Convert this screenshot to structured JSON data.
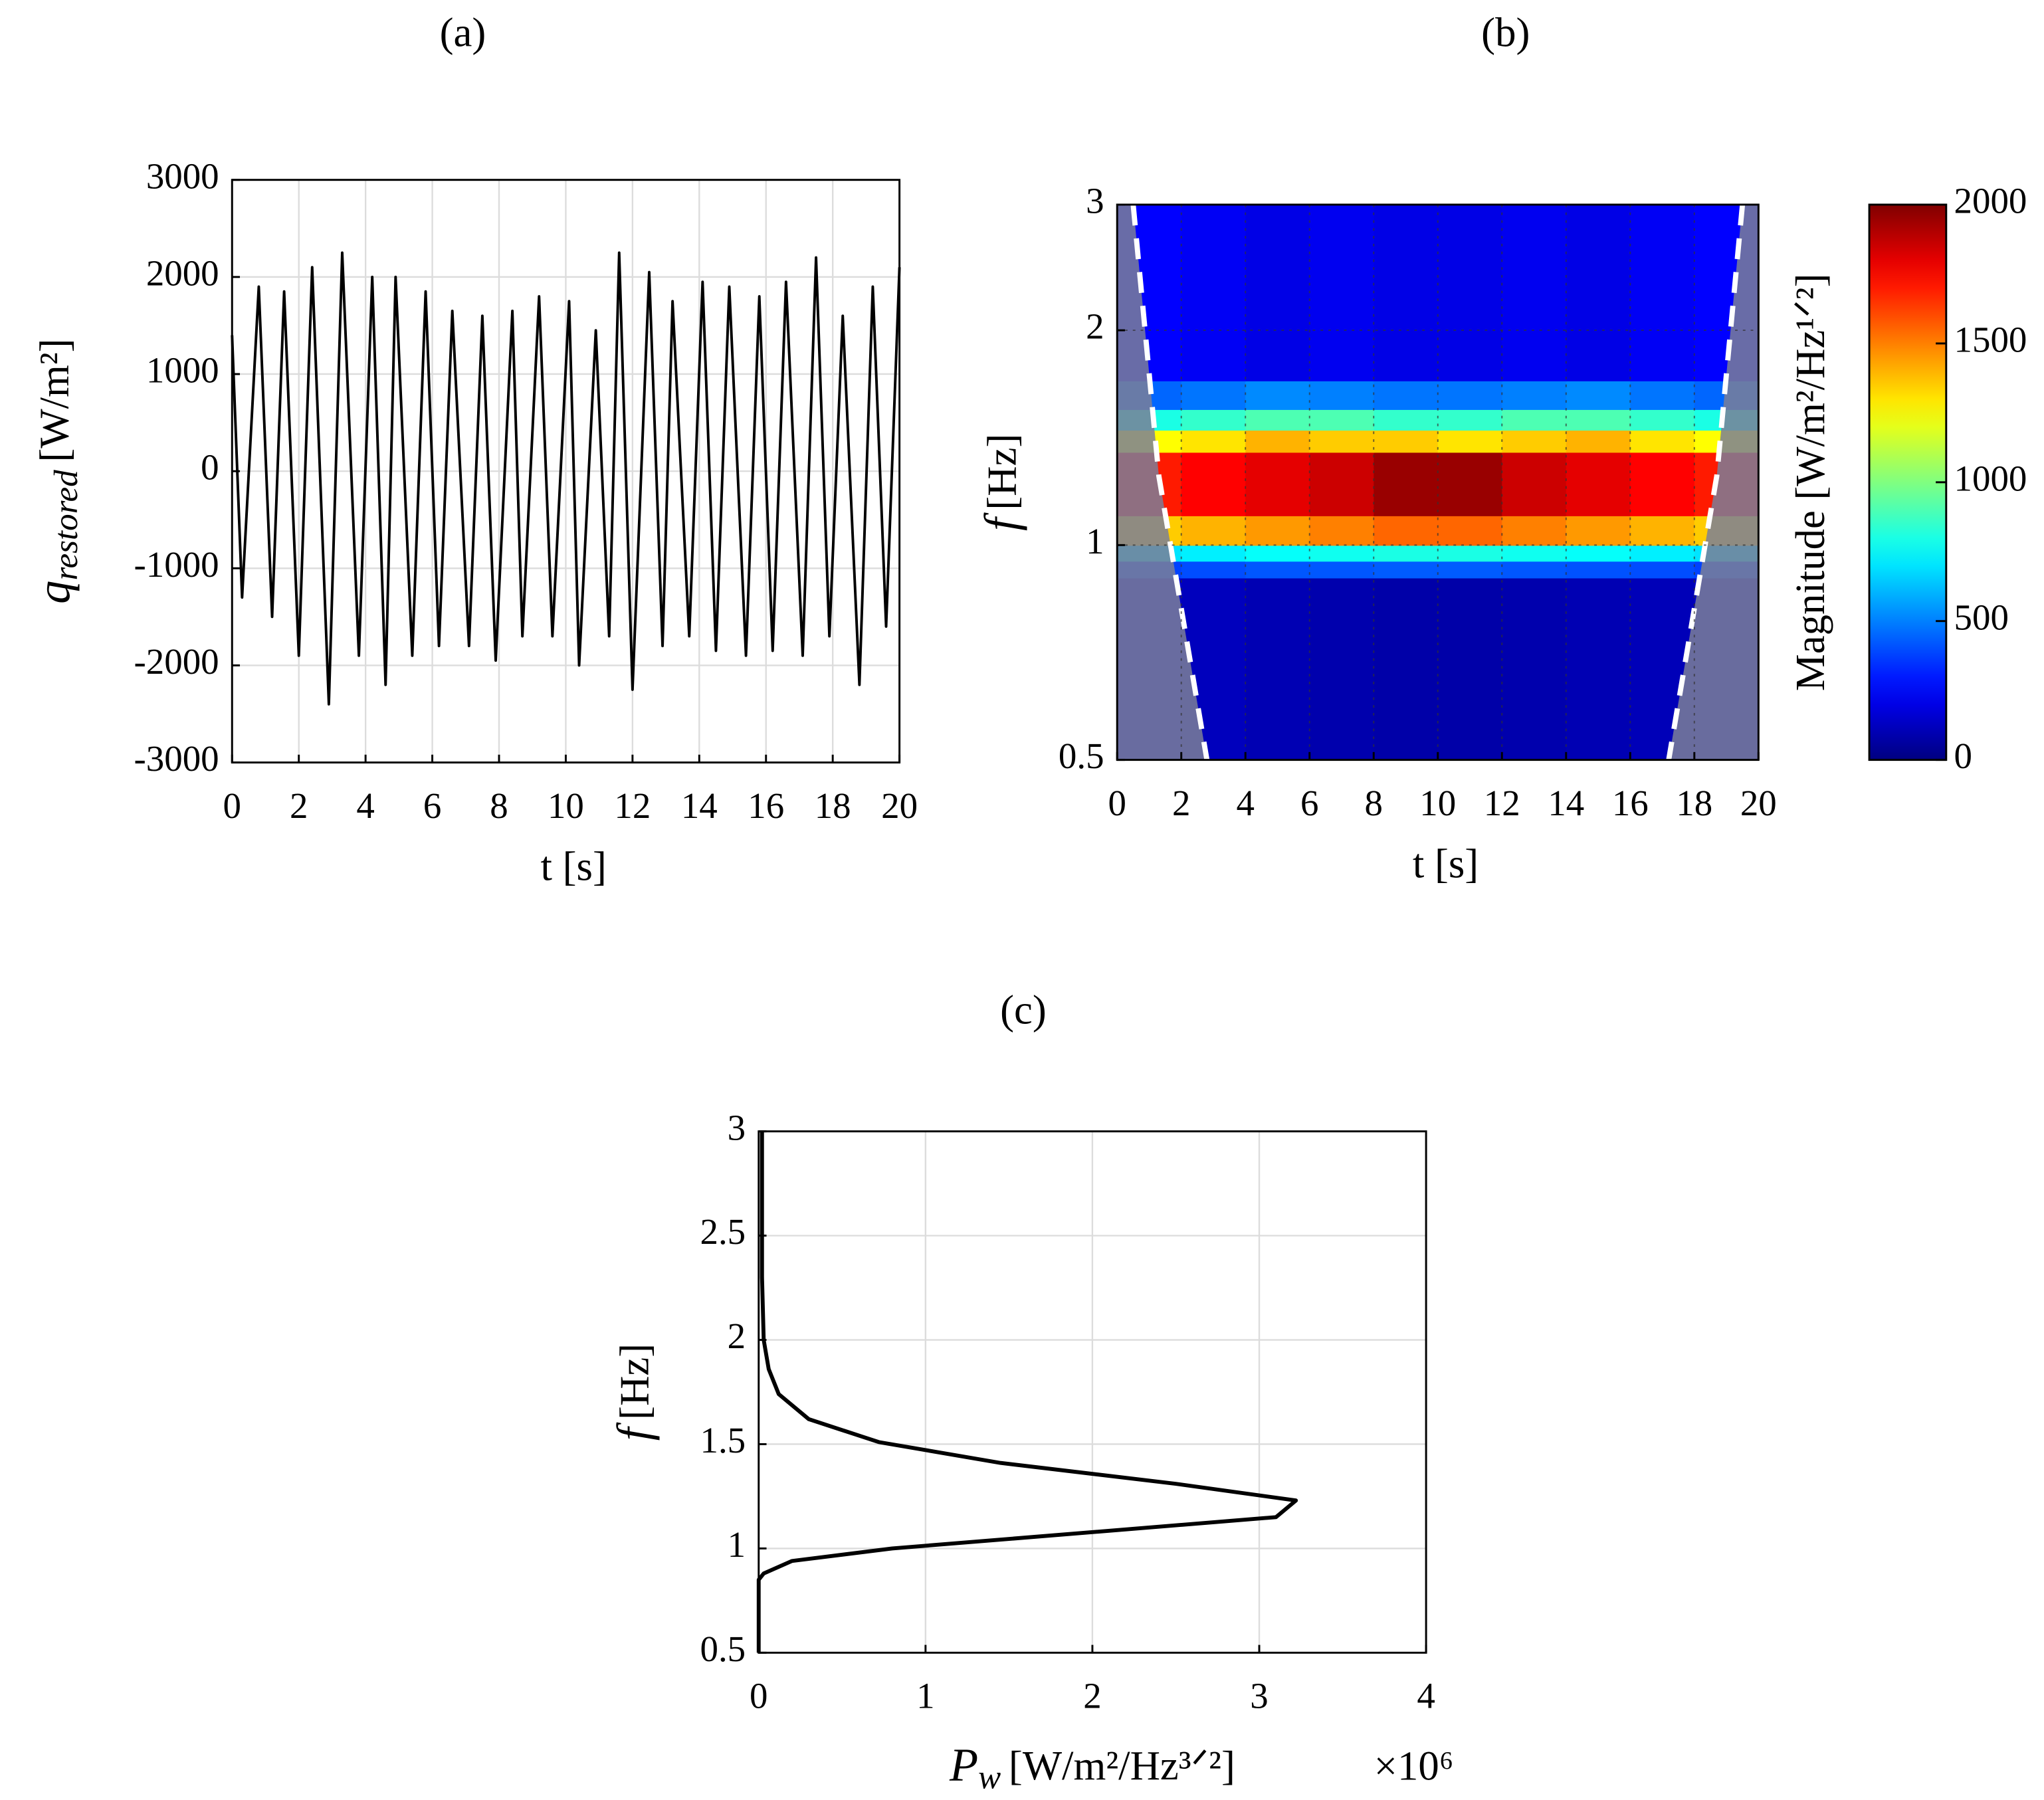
{
  "chart_data": [
    {
      "type": "line",
      "title": "(a)",
      "xlabel": {
        "unit": "t [s]"
      },
      "ylabel": {
        "symbol": "q",
        "subscript": "restored",
        "unit": "[W/m²]"
      },
      "xlim": [
        0,
        20
      ],
      "xticks": [
        0,
        2,
        4,
        6,
        8,
        10,
        12,
        14,
        16,
        18,
        20
      ],
      "ylim": [
        -3000,
        3000
      ],
      "yticks": [
        -3000,
        -2000,
        -1000,
        0,
        1000,
        2000,
        3000
      ],
      "grid": true,
      "series": [
        {
          "color": "#000000",
          "x": [
            0,
            0.3,
            0.8,
            1.2,
            1.56,
            2.0,
            2.4,
            2.9,
            3.3,
            3.8,
            4.2,
            4.6,
            4.9,
            5.4,
            5.8,
            6.2,
            6.6,
            7.1,
            7.5,
            7.9,
            8.4,
            8.7,
            9.2,
            9.6,
            10.1,
            10.4,
            10.9,
            11.3,
            11.6,
            12.0,
            12.5,
            12.9,
            13.2,
            13.7,
            14.1,
            14.5,
            14.9,
            15.4,
            15.8,
            16.2,
            16.6,
            17.1,
            17.5,
            17.9,
            18.3,
            18.8,
            19.2,
            19.6,
            20
          ],
          "values": [
            1400,
            -1300,
            1900,
            -1500,
            1850,
            -1900,
            2100,
            -2400,
            2250,
            -1900,
            2000,
            -2200,
            2000,
            -1900,
            1850,
            -1800,
            1650,
            -1800,
            1600,
            -1950,
            1650,
            -1700,
            1800,
            -1700,
            1750,
            -2000,
            1450,
            -1700,
            2250,
            -2250,
            2050,
            -1800,
            1750,
            -1700,
            1950,
            -1850,
            1900,
            -1900,
            1800,
            -1850,
            1950,
            -1900,
            2200,
            -1700,
            1600,
            -2200,
            1900,
            -1600,
            2100
          ]
        }
      ]
    },
    {
      "type": "heatmap",
      "title": "(b)",
      "xlabel": {
        "unit": "t [s]"
      },
      "ylabel": {
        "symbol": "f",
        "unit": "[Hz]"
      },
      "xlim": [
        0,
        20
      ],
      "xticks": [
        0,
        2,
        4,
        6,
        8,
        10,
        12,
        14,
        16,
        18,
        20
      ],
      "ylim": [
        0.5,
        3
      ],
      "yticks": [
        0.5,
        1,
        2,
        3
      ],
      "ylog": true,
      "grid": true,
      "x_edges": [
        0,
        2,
        4,
        6,
        8,
        10,
        12,
        14,
        16,
        18,
        20
      ],
      "y_edges": [
        0.5,
        0.9,
        0.95,
        1.0,
        1.1,
        1.35,
        1.45,
        1.55,
        1.7,
        3
      ],
      "z": [
        [
          150,
          120,
          100,
          90,
          80,
          80,
          90,
          100,
          110,
          130
        ],
        [
          380,
          400,
          420,
          420,
          430,
          430,
          420,
          410,
          400,
          380
        ],
        [
          700,
          720,
          760,
          780,
          800,
          800,
          780,
          760,
          720,
          700
        ],
        [
          1350,
          1400,
          1450,
          1500,
          1550,
          1550,
          1500,
          1450,
          1400,
          1350
        ],
        [
          1700,
          1750,
          1800,
          1850,
          1950,
          1950,
          1850,
          1800,
          1750,
          1700
        ],
        [
          1250,
          1300,
          1400,
          1350,
          1350,
          1300,
          1350,
          1400,
          1300,
          1250
        ],
        [
          800,
          850,
          900,
          900,
          850,
          850,
          900,
          900,
          850,
          800
        ],
        [
          450,
          480,
          520,
          500,
          480,
          480,
          500,
          520,
          480,
          450
        ],
        [
          250,
          230,
          200,
          220,
          200,
          200,
          220,
          200,
          230,
          250
        ]
      ],
      "colormap": "jet",
      "clim": [
        0,
        2000
      ],
      "cticks": [
        0,
        500,
        1000,
        1500,
        2000
      ],
      "clabel": "Magnitude [W/m²/Hz¹ᐟ²]",
      "coi": {
        "left": {
          "x": [
            0.5,
            1.3,
            2.8
          ],
          "y": [
            3,
            1.25,
            0.5
          ]
        },
        "right": {
          "x": [
            19.5,
            18.7,
            17.2
          ],
          "y": [
            3,
            1.25,
            0.5
          ]
        }
      },
      "coi_color": "#ffffff",
      "shade_color": "#7b7f98"
    },
    {
      "type": "line",
      "title": "(c)",
      "xlabel": {
        "symbol": "P",
        "subscript": "w",
        "unit": "[W/m²/Hz³ᐟ²]"
      },
      "xexponent": "×10⁶",
      "ylabel": {
        "symbol": "f",
        "unit": "[Hz]"
      },
      "xlim": [
        0,
        4
      ],
      "xticks": [
        0,
        1,
        2,
        3,
        4
      ],
      "ylim": [
        0.5,
        3
      ],
      "yticks": [
        0.5,
        1,
        1.5,
        2,
        2.5,
        3
      ],
      "grid": true,
      "series": [
        {
          "color": "#000000",
          "x": [
            0,
            0,
            0.03,
            0.2,
            0.8,
            3.1,
            3.22,
            2.5,
            1.45,
            0.72,
            0.3,
            0.12,
            0.06,
            0.03,
            0.02,
            0.02
          ],
          "values": [
            0.5,
            0.85,
            0.88,
            0.94,
            1.0,
            1.15,
            1.23,
            1.31,
            1.41,
            1.51,
            1.62,
            1.74,
            1.86,
            2.0,
            2.3,
            3
          ]
        }
      ]
    }
  ]
}
